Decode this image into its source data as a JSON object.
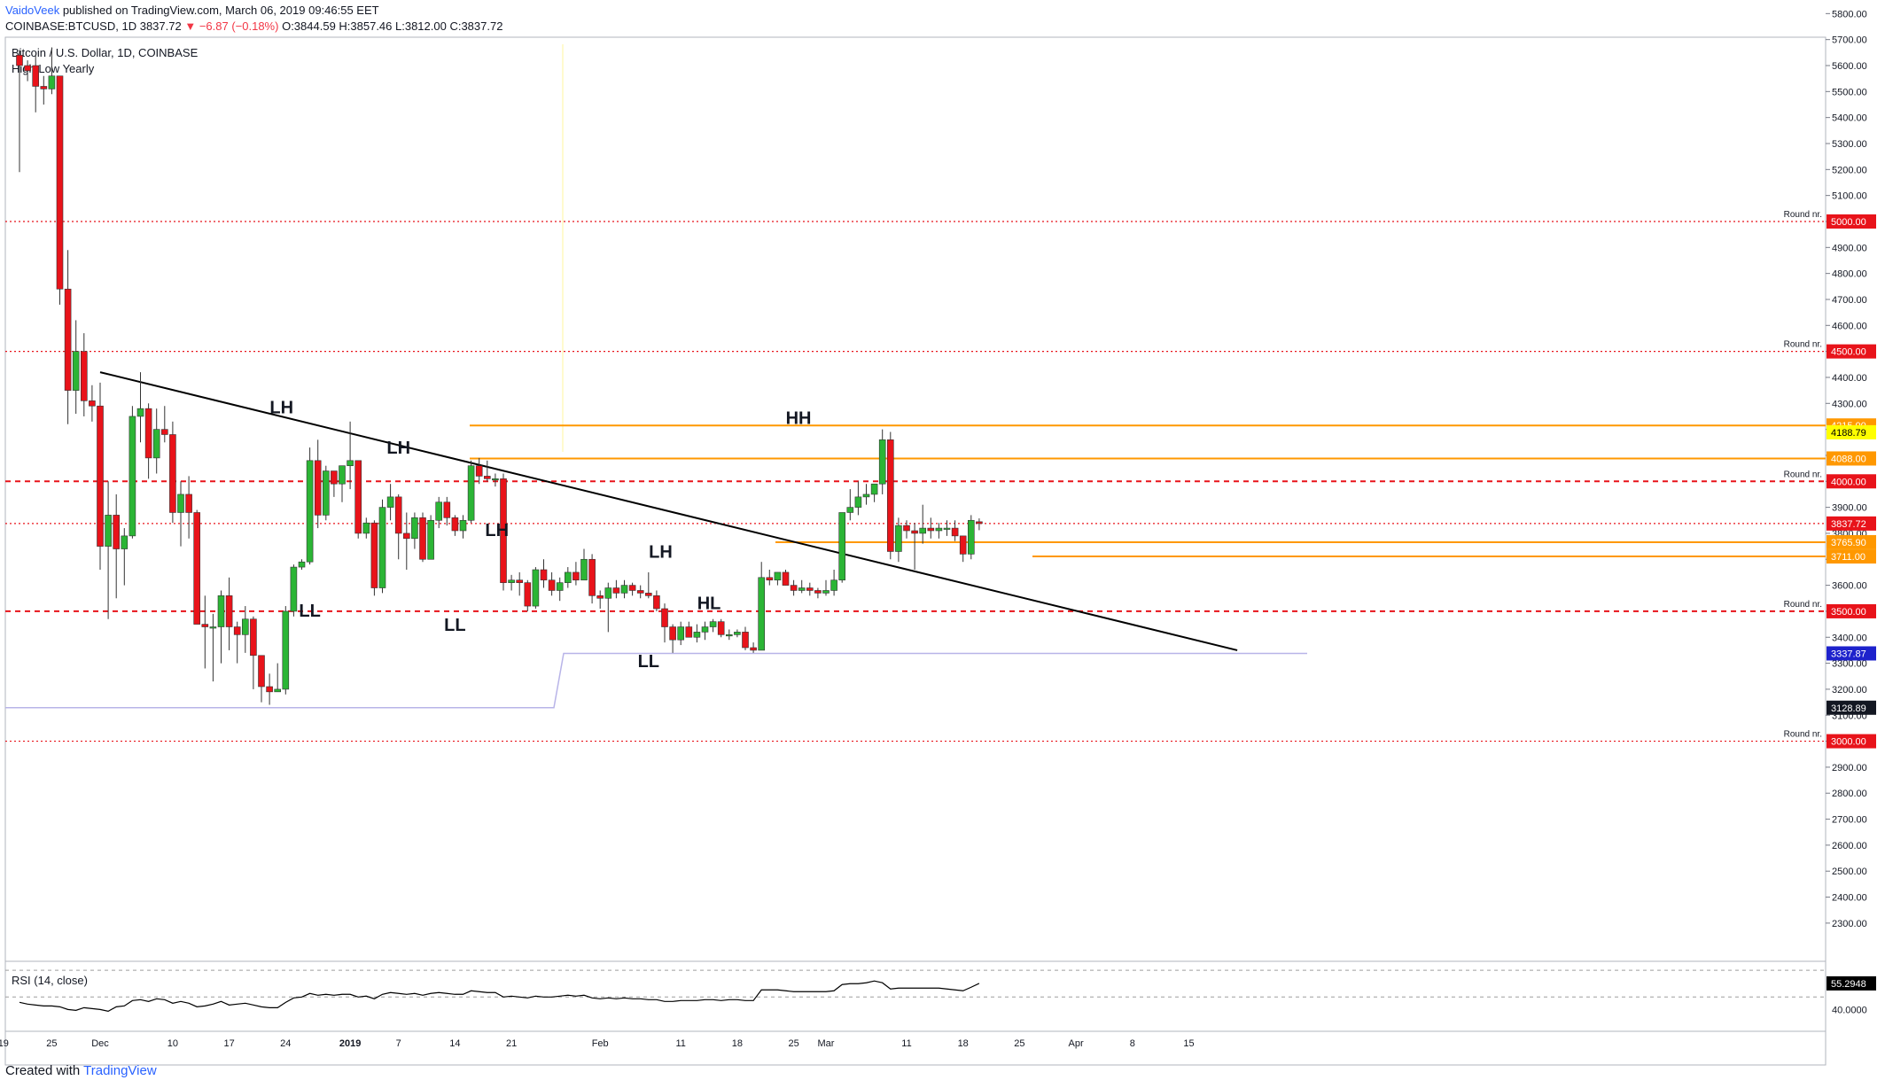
{
  "header": {
    "author": "VaidoVeek",
    "published_text": "published on TradingView.com, March 06, 2019 09:46:55 EET",
    "symbol_line": "COINBASE:BTCUSD, 1D",
    "last": "3837.72",
    "change": "−6.87 (−0.18%)",
    "ohlc": "O:3844.59 H:3857.46 L:3812.00 C:3837.72"
  },
  "chart_title": "Bitcoin / U.S. Dollar, 1D, COINBASE",
  "indicator_label": "High Low Yearly",
  "rsi_label": "RSI (14, close)",
  "footer": {
    "created_with": "Created with",
    "brand": "TradingView"
  },
  "colors": {
    "up": "#2bb535",
    "down": "#e8131a",
    "orange": "#ff9800",
    "dotted_red": "#e8131a",
    "trend": "#000000",
    "yearly_low": "#b8b4e8",
    "text": "#131722"
  },
  "chart_data": {
    "type": "candlestick",
    "title": "Bitcoin / U.S. Dollar, 1D, COINBASE",
    "ylim": [
      2200,
      5850
    ],
    "y_ticks": [
      "2300.00",
      "2400.00",
      "2500.00",
      "2600.00",
      "2700.00",
      "2800.00",
      "2900.00",
      "3000.00",
      "3100.00",
      "3200.00",
      "3300.00",
      "3400.00",
      "3500.00",
      "3600.00",
      "3700.00",
      "3800.00",
      "3900.00",
      "4000.00",
      "4100.00",
      "4200.00",
      "4300.00",
      "4400.00",
      "4500.00",
      "4600.00",
      "4700.00",
      "4800.00",
      "4900.00",
      "5000.00",
      "5100.00",
      "5200.00",
      "5300.00",
      "5400.00",
      "5500.00",
      "5600.00",
      "5700.00",
      "5800.00"
    ],
    "x_ticks": [
      {
        "day": -2,
        "label": "19"
      },
      {
        "day": 4,
        "label": "25"
      },
      {
        "day": 10,
        "label": "Dec"
      },
      {
        "day": 19,
        "label": "10"
      },
      {
        "day": 26,
        "label": "17"
      },
      {
        "day": 33,
        "label": "24"
      },
      {
        "day": 41,
        "label": "2019"
      },
      {
        "day": 47,
        "label": "7"
      },
      {
        "day": 54,
        "label": "14"
      },
      {
        "day": 61,
        "label": "21"
      },
      {
        "day": 72,
        "label": "Feb"
      },
      {
        "day": 82,
        "label": "11"
      },
      {
        "day": 89,
        "label": "18"
      },
      {
        "day": 96,
        "label": "25"
      },
      {
        "day": 100,
        "label": "Mar"
      },
      {
        "day": 110,
        "label": "11"
      },
      {
        "day": 117,
        "label": "18"
      },
      {
        "day": 124,
        "label": "25"
      },
      {
        "day": 131,
        "label": "Apr"
      },
      {
        "day": 138,
        "label": "8"
      },
      {
        "day": 145,
        "label": "15"
      }
    ],
    "candles": [
      {
        "o": 5640,
        "h": 5660,
        "l": 5190,
        "c": 5600
      },
      {
        "o": 5600,
        "h": 5620,
        "l": 5540,
        "c": 5580
      },
      {
        "o": 5600,
        "h": 5640,
        "l": 5420,
        "c": 5520
      },
      {
        "o": 5520,
        "h": 5560,
        "l": 5450,
        "c": 5510
      },
      {
        "o": 5510,
        "h": 5670,
        "l": 5490,
        "c": 5560
      },
      {
        "o": 5560,
        "h": 5560,
        "l": 4680,
        "c": 4740
      },
      {
        "o": 4740,
        "h": 4890,
        "l": 4220,
        "c": 4350
      },
      {
        "o": 4350,
        "h": 4620,
        "l": 4260,
        "c": 4500
      },
      {
        "o": 4500,
        "h": 4570,
        "l": 4250,
        "c": 4310
      },
      {
        "o": 4310,
        "h": 4370,
        "l": 4230,
        "c": 4290
      },
      {
        "o": 4290,
        "h": 4380,
        "l": 3660,
        "c": 3750
      },
      {
        "o": 3750,
        "h": 4000,
        "l": 3470,
        "c": 3870
      },
      {
        "o": 3870,
        "h": 3950,
        "l": 3550,
        "c": 3740
      },
      {
        "o": 3740,
        "h": 3820,
        "l": 3600,
        "c": 3790
      },
      {
        "o": 3790,
        "h": 4290,
        "l": 3780,
        "c": 4250
      },
      {
        "o": 4250,
        "h": 4420,
        "l": 4150,
        "c": 4280
      },
      {
        "o": 4280,
        "h": 4300,
        "l": 4010,
        "c": 4090
      },
      {
        "o": 4090,
        "h": 4280,
        "l": 4030,
        "c": 4200
      },
      {
        "o": 4200,
        "h": 4290,
        "l": 4150,
        "c": 4180
      },
      {
        "o": 4180,
        "h": 4230,
        "l": 3840,
        "c": 3880
      },
      {
        "o": 3880,
        "h": 4000,
        "l": 3750,
        "c": 3950
      },
      {
        "o": 3950,
        "h": 4020,
        "l": 3780,
        "c": 3880
      },
      {
        "o": 3880,
        "h": 3890,
        "l": 3480,
        "c": 3450
      },
      {
        "o": 3450,
        "h": 3560,
        "l": 3280,
        "c": 3440
      },
      {
        "o": 3440,
        "h": 3490,
        "l": 3230,
        "c": 3440
      },
      {
        "o": 3440,
        "h": 3580,
        "l": 3300,
        "c": 3560
      },
      {
        "o": 3560,
        "h": 3630,
        "l": 3350,
        "c": 3440
      },
      {
        "o": 3440,
        "h": 3460,
        "l": 3300,
        "c": 3410
      },
      {
        "o": 3410,
        "h": 3520,
        "l": 3340,
        "c": 3470
      },
      {
        "o": 3470,
        "h": 3480,
        "l": 3200,
        "c": 3330
      },
      {
        "o": 3330,
        "h": 3320,
        "l": 3150,
        "c": 3210
      },
      {
        "o": 3210,
        "h": 3260,
        "l": 3140,
        "c": 3190
      },
      {
        "o": 3190,
        "h": 3300,
        "l": 3190,
        "c": 3200
      },
      {
        "o": 3200,
        "h": 3520,
        "l": 3180,
        "c": 3500
      },
      {
        "o": 3500,
        "h": 3680,
        "l": 3480,
        "c": 3670
      },
      {
        "o": 3670,
        "h": 3700,
        "l": 3660,
        "c": 3690
      },
      {
        "o": 3690,
        "h": 4130,
        "l": 3680,
        "c": 4080
      },
      {
        "o": 4080,
        "h": 4160,
        "l": 3820,
        "c": 3870
      },
      {
        "o": 3870,
        "h": 4060,
        "l": 3850,
        "c": 4040
      },
      {
        "o": 4040,
        "h": 4030,
        "l": 3940,
        "c": 3990
      },
      {
        "o": 3990,
        "h": 4060,
        "l": 3920,
        "c": 4060
      },
      {
        "o": 4060,
        "h": 4230,
        "l": 3970,
        "c": 4080
      },
      {
        "o": 4080,
        "h": 4080,
        "l": 3780,
        "c": 3800
      },
      {
        "o": 3800,
        "h": 3860,
        "l": 3780,
        "c": 3840
      },
      {
        "o": 3840,
        "h": 3850,
        "l": 3560,
        "c": 3590
      },
      {
        "o": 3590,
        "h": 3930,
        "l": 3570,
        "c": 3900
      },
      {
        "o": 3900,
        "h": 3990,
        "l": 3850,
        "c": 3940
      },
      {
        "o": 3940,
        "h": 3950,
        "l": 3700,
        "c": 3800
      },
      {
        "o": 3800,
        "h": 3880,
        "l": 3660,
        "c": 3780
      },
      {
        "o": 3780,
        "h": 3880,
        "l": 3740,
        "c": 3860
      },
      {
        "o": 3860,
        "h": 3880,
        "l": 3690,
        "c": 3700
      },
      {
        "o": 3700,
        "h": 3870,
        "l": 3700,
        "c": 3850
      },
      {
        "o": 3850,
        "h": 3940,
        "l": 3820,
        "c": 3920
      },
      {
        "o": 3920,
        "h": 3940,
        "l": 3830,
        "c": 3860
      },
      {
        "o": 3860,
        "h": 3870,
        "l": 3790,
        "c": 3810
      },
      {
        "o": 3810,
        "h": 3870,
        "l": 3780,
        "c": 3850
      },
      {
        "o": 3850,
        "h": 4080,
        "l": 3840,
        "c": 4060
      },
      {
        "o": 4060,
        "h": 4090,
        "l": 3990,
        "c": 4020
      },
      {
        "o": 4020,
        "h": 4080,
        "l": 4000,
        "c": 4010
      },
      {
        "o": 4010,
        "h": 4030,
        "l": 3980,
        "c": 4010
      },
      {
        "o": 4010,
        "h": 4030,
        "l": 3580,
        "c": 3610
      },
      {
        "o": 3610,
        "h": 3640,
        "l": 3580,
        "c": 3620
      },
      {
        "o": 3620,
        "h": 3650,
        "l": 3560,
        "c": 3610
      },
      {
        "o": 3610,
        "h": 3620,
        "l": 3500,
        "c": 3520
      },
      {
        "o": 3520,
        "h": 3670,
        "l": 3510,
        "c": 3660
      },
      {
        "o": 3660,
        "h": 3700,
        "l": 3590,
        "c": 3620
      },
      {
        "o": 3620,
        "h": 3650,
        "l": 3560,
        "c": 3580
      },
      {
        "o": 3580,
        "h": 3630,
        "l": 3540,
        "c": 3610
      },
      {
        "o": 3610,
        "h": 3670,
        "l": 3590,
        "c": 3650
      },
      {
        "o": 3650,
        "h": 3690,
        "l": 3600,
        "c": 3620
      },
      {
        "o": 3620,
        "h": 3740,
        "l": 3620,
        "c": 3700
      },
      {
        "o": 3700,
        "h": 3720,
        "l": 3530,
        "c": 3560
      },
      {
        "o": 3560,
        "h": 3580,
        "l": 3510,
        "c": 3550
      },
      {
        "o": 3550,
        "h": 3610,
        "l": 3420,
        "c": 3590
      },
      {
        "o": 3590,
        "h": 3620,
        "l": 3550,
        "c": 3570
      },
      {
        "o": 3570,
        "h": 3620,
        "l": 3550,
        "c": 3600
      },
      {
        "o": 3600,
        "h": 3610,
        "l": 3560,
        "c": 3580
      },
      {
        "o": 3580,
        "h": 3600,
        "l": 3550,
        "c": 3570
      },
      {
        "o": 3570,
        "h": 3650,
        "l": 3550,
        "c": 3560
      },
      {
        "o": 3560,
        "h": 3580,
        "l": 3500,
        "c": 3510
      },
      {
        "o": 3510,
        "h": 3530,
        "l": 3380,
        "c": 3440
      },
      {
        "o": 3440,
        "h": 3450,
        "l": 3340,
        "c": 3390
      },
      {
        "o": 3390,
        "h": 3460,
        "l": 3370,
        "c": 3440
      },
      {
        "o": 3440,
        "h": 3460,
        "l": 3400,
        "c": 3400
      },
      {
        "o": 3400,
        "h": 3450,
        "l": 3380,
        "c": 3420
      },
      {
        "o": 3420,
        "h": 3460,
        "l": 3390,
        "c": 3440
      },
      {
        "o": 3440,
        "h": 3470,
        "l": 3420,
        "c": 3460
      },
      {
        "o": 3460,
        "h": 3470,
        "l": 3400,
        "c": 3410
      },
      {
        "o": 3410,
        "h": 3430,
        "l": 3390,
        "c": 3410
      },
      {
        "o": 3410,
        "h": 3430,
        "l": 3400,
        "c": 3420
      },
      {
        "o": 3420,
        "h": 3440,
        "l": 3350,
        "c": 3360
      },
      {
        "o": 3360,
        "h": 3380,
        "l": 3340,
        "c": 3350
      },
      {
        "o": 3350,
        "h": 3690,
        "l": 3350,
        "c": 3630
      },
      {
        "o": 3630,
        "h": 3660,
        "l": 3600,
        "c": 3620
      },
      {
        "o": 3620,
        "h": 3650,
        "l": 3600,
        "c": 3650
      },
      {
        "o": 3650,
        "h": 3660,
        "l": 3600,
        "c": 3600
      },
      {
        "o": 3600,
        "h": 3620,
        "l": 3560,
        "c": 3580
      },
      {
        "o": 3580,
        "h": 3620,
        "l": 3570,
        "c": 3590
      },
      {
        "o": 3590,
        "h": 3610,
        "l": 3560,
        "c": 3580
      },
      {
        "o": 3580,
        "h": 3590,
        "l": 3550,
        "c": 3570
      },
      {
        "o": 3570,
        "h": 3620,
        "l": 3560,
        "c": 3580
      },
      {
        "o": 3580,
        "h": 3660,
        "l": 3560,
        "c": 3620
      },
      {
        "o": 3620,
        "h": 3860,
        "l": 3610,
        "c": 3880
      },
      {
        "o": 3880,
        "h": 3970,
        "l": 3850,
        "c": 3900
      },
      {
        "o": 3900,
        "h": 4000,
        "l": 3870,
        "c": 3940
      },
      {
        "o": 3940,
        "h": 3990,
        "l": 3910,
        "c": 3950
      },
      {
        "o": 3950,
        "h": 3980,
        "l": 3920,
        "c": 3990
      },
      {
        "o": 3990,
        "h": 4200,
        "l": 3950,
        "c": 4160
      },
      {
        "o": 4160,
        "h": 4190,
        "l": 3700,
        "c": 3730
      },
      {
        "o": 3730,
        "h": 3860,
        "l": 3690,
        "c": 3830
      },
      {
        "o": 3830,
        "h": 3850,
        "l": 3780,
        "c": 3810
      },
      {
        "o": 3810,
        "h": 3840,
        "l": 3660,
        "c": 3800
      },
      {
        "o": 3800,
        "h": 3910,
        "l": 3760,
        "c": 3820
      },
      {
        "o": 3820,
        "h": 3860,
        "l": 3780,
        "c": 3810
      },
      {
        "o": 3810,
        "h": 3840,
        "l": 3780,
        "c": 3820
      },
      {
        "o": 3820,
        "h": 3850,
        "l": 3790,
        "c": 3820
      },
      {
        "o": 3820,
        "h": 3850,
        "l": 3770,
        "c": 3790
      },
      {
        "o": 3790,
        "h": 3790,
        "l": 3690,
        "c": 3720
      },
      {
        "o": 3720,
        "h": 3870,
        "l": 3700,
        "c": 3850
      },
      {
        "o": 3844.59,
        "h": 3857.46,
        "l": 3812,
        "c": 3837.72
      }
    ],
    "rsi": [
      34,
      32,
      31,
      30,
      30,
      29,
      26,
      25,
      28,
      27,
      26,
      24,
      29,
      30,
      36,
      37,
      35,
      38,
      37,
      33,
      35,
      33,
      29,
      30,
      32,
      35,
      31,
      32,
      33,
      31,
      29,
      28,
      28,
      34,
      39,
      40,
      44,
      42,
      43,
      42,
      43,
      43,
      40,
      41,
      38,
      43,
      45,
      44,
      43,
      44,
      42,
      44,
      45,
      44,
      43,
      43,
      47,
      46,
      45,
      45,
      40,
      41,
      40,
      39,
      41,
      40,
      40,
      41,
      42,
      41,
      42,
      39,
      38,
      39,
      38,
      39,
      38,
      38,
      37,
      37,
      35,
      35,
      36,
      36,
      36,
      37,
      37,
      36,
      37,
      37,
      36,
      36,
      48,
      48,
      48,
      47,
      46,
      46,
      46,
      46,
      46,
      47,
      54,
      55,
      55,
      56,
      58,
      56,
      49,
      50,
      50,
      50,
      50,
      50,
      50,
      49,
      48,
      47,
      51,
      55.2948
    ],
    "horizontal_levels": [
      {
        "price": 5000,
        "label": "5000.00",
        "note": "Round nr.",
        "style": "dotted-red"
      },
      {
        "price": 4500,
        "label": "4500.00",
        "note": "Round nr.",
        "style": "dotted-red"
      },
      {
        "price": 4215,
        "label": "4215.00",
        "note": "",
        "style": "orange"
      },
      {
        "price": 4088,
        "label": "4088.00",
        "note": "",
        "style": "orange"
      },
      {
        "price": 4000,
        "label": "4000.00",
        "note": "Round nr.",
        "style": "dashed-red"
      },
      {
        "price": 3837.72,
        "label": "3837.72",
        "note": "",
        "style": "dotted-red-price"
      },
      {
        "price": 3765.9,
        "label": "3765.90",
        "note": "",
        "style": "orange"
      },
      {
        "price": 3711,
        "label": "3711.00",
        "note": "",
        "style": "orange"
      },
      {
        "price": 3500,
        "label": "3500.00",
        "note": "Round nr.",
        "style": "dashed-red"
      },
      {
        "price": 3000,
        "label": "3000.00",
        "note": "Round nr.",
        "style": "dotted-red"
      }
    ],
    "extra_price_labels": [
      {
        "price": 4188.79,
        "label": "4188.79",
        "bg": "#ffff00",
        "fg": "#000000"
      },
      {
        "price": 3337.87,
        "label": "3337.87",
        "bg": "#1e22cc",
        "fg": "#ffffff"
      },
      {
        "price": 3128.89,
        "label": "3128.89",
        "bg": "#131722",
        "fg": "#ffffff"
      }
    ],
    "rsi_value_label": "55.2948",
    "rsi_ticks": [
      "40.0000"
    ],
    "trendline": {
      "from": {
        "day": 10,
        "price": 4420
      },
      "to": {
        "day": 151,
        "price": 3350
      }
    },
    "yearly_low": {
      "before": 3128.89,
      "after": 3337.87
    },
    "annotations": [
      {
        "text": "LH",
        "day": 32.5,
        "price": 4262
      },
      {
        "text": "LL",
        "day": 36,
        "price": 3480
      },
      {
        "text": "LH",
        "day": 47,
        "price": 4107
      },
      {
        "text": "LH",
        "day": 59.2,
        "price": 3789
      },
      {
        "text": "LL",
        "day": 54,
        "price": 3425
      },
      {
        "text": "LH",
        "day": 79.5,
        "price": 3706
      },
      {
        "text": "LL",
        "day": 78,
        "price": 3285
      },
      {
        "text": "HL",
        "day": 85.5,
        "price": 3508
      },
      {
        "text": "HH",
        "day": 96.6,
        "price": 4221
      }
    ]
  }
}
